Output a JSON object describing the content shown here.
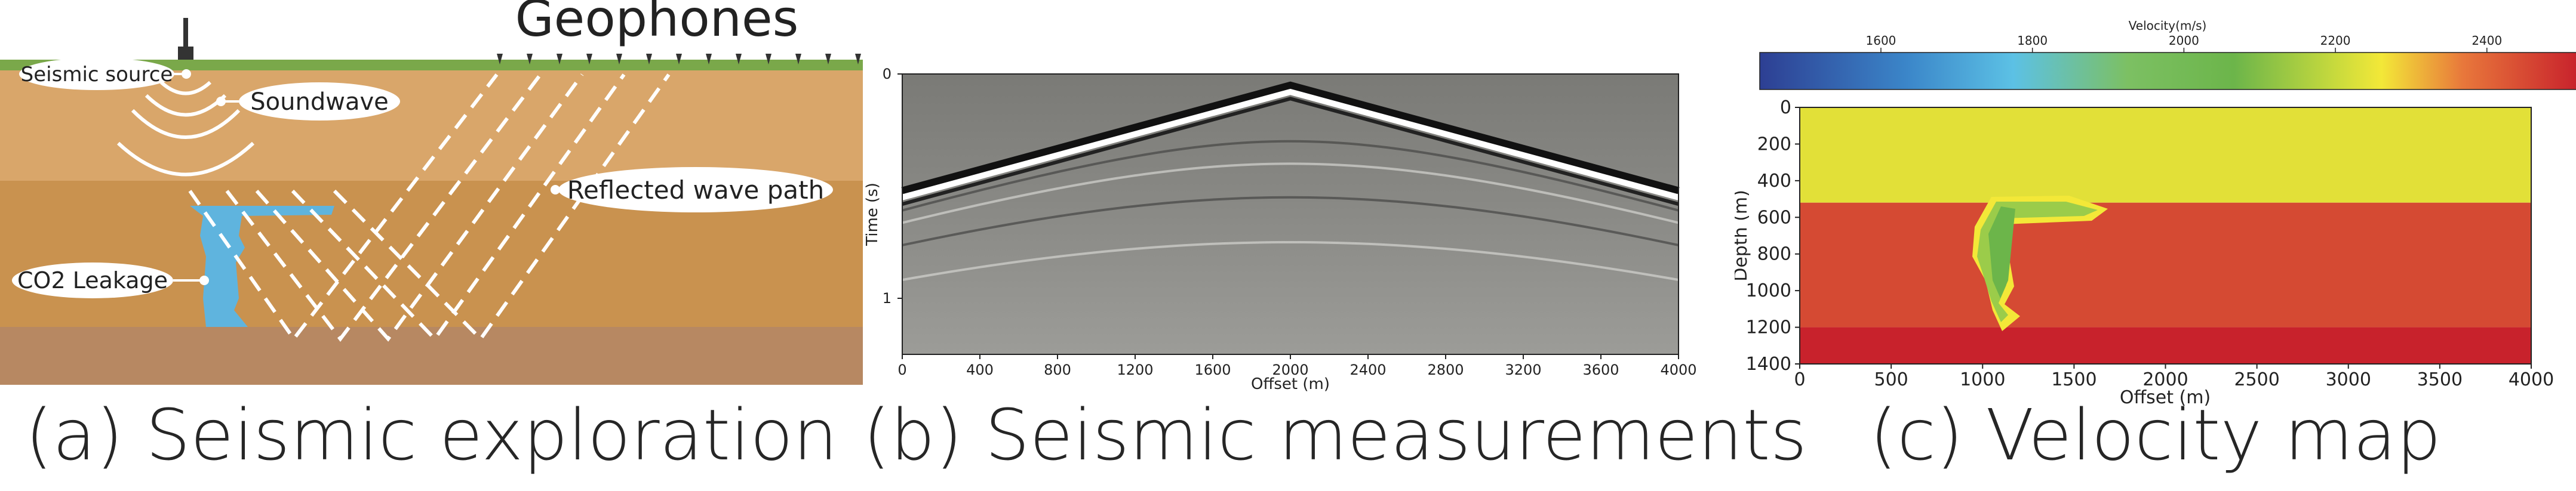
{
  "panel_a": {
    "caption": "(a) Seismic exploration",
    "labels": {
      "geophones": "Geophones",
      "seismic_source": "Seismic source",
      "soundwave": "Soundwave",
      "reflected_wave_path": "Reflected wave path",
      "co2_leakage": "CO2 Leakage"
    },
    "colors": {
      "grass": "#7aa84a",
      "layer1": "#d9a66a",
      "layer2": "#c9924f",
      "layer3": "#b78862",
      "co2": "#5fb4de"
    }
  },
  "panel_b": {
    "caption": "(b) Seismic measurements",
    "chart_data": {
      "type": "heatmap",
      "xlabel": "Offset (m)",
      "ylabel": "Time (s)",
      "xlim": [
        0,
        4000
      ],
      "ylim": [
        0,
        1.25
      ],
      "x_ticks": [
        "0",
        "400",
        "800",
        "1200",
        "1600",
        "2000",
        "2400",
        "2800",
        "3200",
        "3600",
        "4000"
      ],
      "y_ticks": [
        "0",
        "1"
      ],
      "source_offset": 2000,
      "direct_arrival_time_at_source": 0.05,
      "direct_arrival_time_at_edges": 0.52
    }
  },
  "panel_c": {
    "caption": "(c) Velocity map",
    "chart_data": {
      "type": "heatmap",
      "xlabel": "Offset (m)",
      "ylabel": "Depth (m)",
      "xlim": [
        0,
        4000
      ],
      "ylim": [
        1400,
        0
      ],
      "x_ticks": [
        "0",
        "500",
        "1000",
        "1500",
        "2000",
        "2500",
        "3000",
        "3500",
        "4000"
      ],
      "y_ticks": [
        "0",
        "200",
        "400",
        "600",
        "800",
        "1000",
        "1200",
        "1400"
      ],
      "colorbar": {
        "label": "Velocity(m/s)",
        "ticks": [
          "1600",
          "1800",
          "2000",
          "2200",
          "2400"
        ],
        "range": [
          1440,
          2520
        ]
      },
      "layers": [
        {
          "depth_top": 0,
          "depth_bottom": 520,
          "velocity": 2300
        },
        {
          "depth_top": 520,
          "depth_bottom": 1200,
          "velocity": 2440
        },
        {
          "depth_top": 1200,
          "depth_bottom": 1400,
          "velocity": 2500
        }
      ],
      "anomaly": {
        "velocity": 2000,
        "x_range": [
          950,
          1750
        ],
        "depth_range": [
          640,
          1200
        ]
      }
    }
  }
}
